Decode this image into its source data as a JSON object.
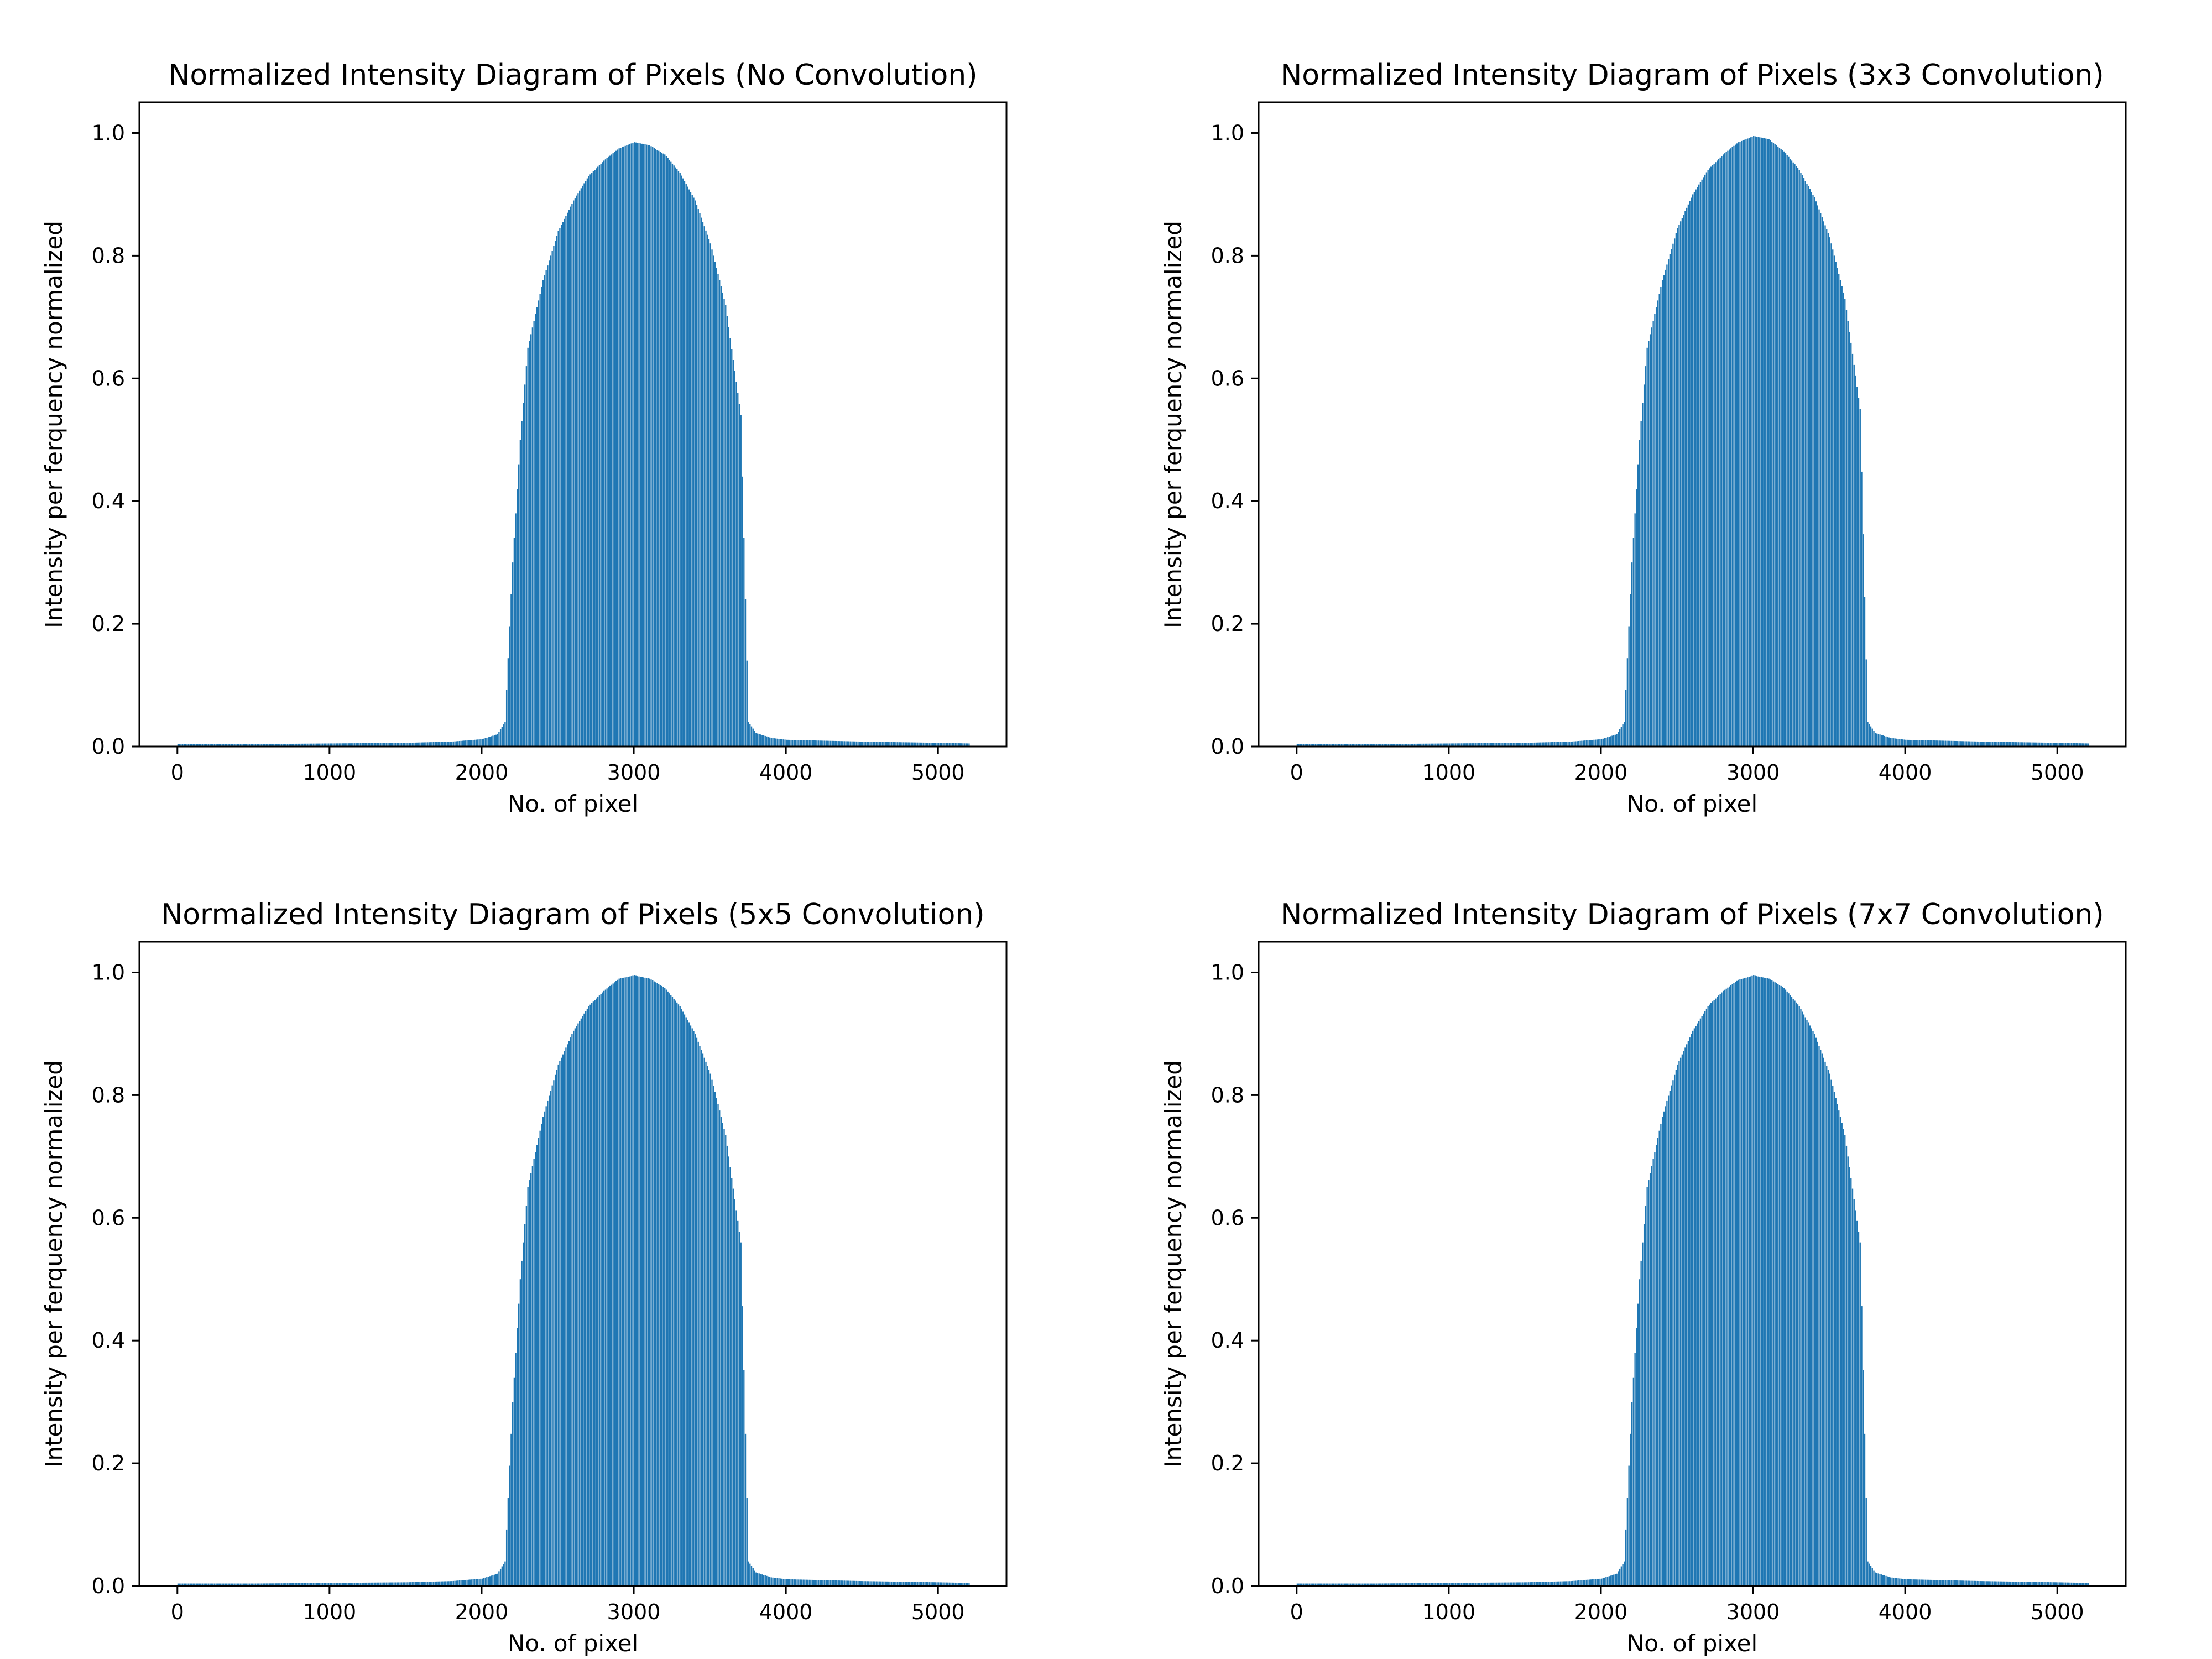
{
  "chart_data": [
    {
      "type": "bar",
      "title": "Normalized Intensity Diagram of Pixels (No Convolution)",
      "xlabel": "No. of pixel",
      "ylabel": "Intensity per ferquency normalized",
      "xlim": [
        -250,
        5450
      ],
      "ylim": [
        0,
        1.05
      ],
      "xticks": [
        0,
        1000,
        2000,
        3000,
        4000,
        5000
      ],
      "yticks": [
        0.0,
        0.2,
        0.4,
        0.6,
        0.8,
        1.0
      ],
      "grid": false,
      "color": "#1f77b4",
      "x": [
        0,
        500,
        1000,
        1500,
        1800,
        2000,
        2100,
        2150,
        2200,
        2250,
        2300,
        2400,
        2500,
        2600,
        2700,
        2800,
        2900,
        3000,
        3100,
        3200,
        3300,
        3400,
        3500,
        3600,
        3700,
        3750,
        3800,
        3900,
        4000,
        4500,
        5000,
        5200
      ],
      "y": [
        0.004,
        0.004,
        0.005,
        0.006,
        0.008,
        0.012,
        0.02,
        0.04,
        0.3,
        0.5,
        0.65,
        0.76,
        0.84,
        0.89,
        0.93,
        0.955,
        0.975,
        0.985,
        0.98,
        0.965,
        0.935,
        0.89,
        0.82,
        0.72,
        0.54,
        0.04,
        0.022,
        0.014,
        0.011,
        0.008,
        0.006,
        0.005
      ]
    },
    {
      "type": "bar",
      "title": "Normalized Intensity Diagram of Pixels (3x3 Convolution)",
      "xlabel": "No. of pixel",
      "ylabel": "Intensity per ferquency normalized",
      "xlim": [
        -250,
        5450
      ],
      "ylim": [
        0,
        1.05
      ],
      "xticks": [
        0,
        1000,
        2000,
        3000,
        4000,
        5000
      ],
      "yticks": [
        0.0,
        0.2,
        0.4,
        0.6,
        0.8,
        1.0
      ],
      "grid": false,
      "color": "#1f77b4",
      "x": [
        0,
        500,
        1000,
        1500,
        1800,
        2000,
        2100,
        2150,
        2200,
        2250,
        2300,
        2400,
        2500,
        2600,
        2700,
        2800,
        2900,
        3000,
        3100,
        3200,
        3300,
        3400,
        3500,
        3600,
        3700,
        3750,
        3800,
        3900,
        4000,
        4500,
        5000,
        5200
      ],
      "y": [
        0.004,
        0.004,
        0.005,
        0.006,
        0.008,
        0.012,
        0.02,
        0.04,
        0.3,
        0.5,
        0.65,
        0.76,
        0.845,
        0.9,
        0.94,
        0.965,
        0.985,
        0.995,
        0.99,
        0.97,
        0.94,
        0.895,
        0.83,
        0.73,
        0.55,
        0.04,
        0.022,
        0.014,
        0.011,
        0.008,
        0.006,
        0.005
      ]
    },
    {
      "type": "bar",
      "title": "Normalized Intensity Diagram of Pixels (5x5 Convolution)",
      "xlabel": "No. of pixel",
      "ylabel": "Intensity per ferquency normalized",
      "xlim": [
        -250,
        5450
      ],
      "ylim": [
        0,
        1.05
      ],
      "xticks": [
        0,
        1000,
        2000,
        3000,
        4000,
        5000
      ],
      "yticks": [
        0.0,
        0.2,
        0.4,
        0.6,
        0.8,
        1.0
      ],
      "grid": false,
      "color": "#1f77b4",
      "x": [
        0,
        500,
        1000,
        1500,
        1800,
        2000,
        2100,
        2150,
        2200,
        2250,
        2300,
        2400,
        2500,
        2600,
        2700,
        2800,
        2900,
        3000,
        3100,
        3200,
        3300,
        3400,
        3500,
        3600,
        3700,
        3750,
        3800,
        3900,
        4000,
        4500,
        5000,
        5200
      ],
      "y": [
        0.004,
        0.004,
        0.005,
        0.006,
        0.008,
        0.012,
        0.02,
        0.04,
        0.3,
        0.5,
        0.65,
        0.765,
        0.85,
        0.905,
        0.945,
        0.97,
        0.99,
        0.995,
        0.99,
        0.975,
        0.945,
        0.9,
        0.835,
        0.735,
        0.56,
        0.04,
        0.022,
        0.014,
        0.011,
        0.008,
        0.006,
        0.005
      ]
    },
    {
      "type": "bar",
      "title": "Normalized Intensity Diagram of Pixels (7x7 Convolution)",
      "xlabel": "No. of pixel",
      "ylabel": "Intensity per ferquency normalized",
      "xlim": [
        -250,
        5450
      ],
      "ylim": [
        0,
        1.05
      ],
      "xticks": [
        0,
        1000,
        2000,
        3000,
        4000,
        5000
      ],
      "yticks": [
        0.0,
        0.2,
        0.4,
        0.6,
        0.8,
        1.0
      ],
      "grid": false,
      "color": "#1f77b4",
      "x": [
        0,
        500,
        1000,
        1500,
        1800,
        2000,
        2100,
        2150,
        2200,
        2250,
        2300,
        2400,
        2500,
        2600,
        2700,
        2800,
        2900,
        3000,
        3100,
        3200,
        3300,
        3400,
        3500,
        3600,
        3700,
        3750,
        3800,
        3900,
        4000,
        4500,
        5000,
        5200
      ],
      "y": [
        0.004,
        0.004,
        0.005,
        0.006,
        0.008,
        0.012,
        0.02,
        0.04,
        0.3,
        0.5,
        0.65,
        0.765,
        0.85,
        0.905,
        0.945,
        0.97,
        0.988,
        0.995,
        0.99,
        0.975,
        0.945,
        0.9,
        0.835,
        0.735,
        0.56,
        0.04,
        0.022,
        0.014,
        0.011,
        0.008,
        0.006,
        0.005
      ]
    }
  ]
}
